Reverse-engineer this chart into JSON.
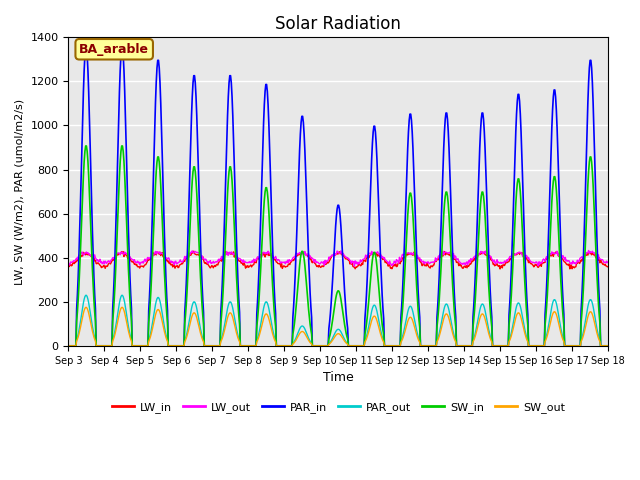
{
  "title": "Solar Radiation",
  "ylabel": "LW, SW (W/m2), PAR (umol/m2/s)",
  "xlabel": "Time",
  "ylim": [
    0,
    1400
  ],
  "yticks": [
    0,
    200,
    400,
    600,
    800,
    1000,
    1200,
    1400
  ],
  "annotation_text": "BA_arable",
  "annotation_color": "#8B0000",
  "annotation_bg": "#FFFF99",
  "bg_color": "#E8E8E8",
  "series_colors": {
    "LW_in": "#FF0000",
    "LW_out": "#FF00FF",
    "PAR_in": "#0000FF",
    "PAR_out": "#00CCCC",
    "SW_in": "#00CC00",
    "SW_out": "#FFA500"
  },
  "xtick_labels": [
    "Sep 3",
    "Sep 4",
    "Sep 5",
    "Sep 6",
    "Sep 7",
    "Sep 8",
    "Sep 9",
    "Sep 10",
    "Sep 11",
    "Sep 12",
    "Sep 13",
    "Sep 14",
    "Sep 15",
    "Sep 16",
    "Sep 17",
    "Sep 18"
  ],
  "n_days": 15,
  "day_peaks_PAR_in": [
    1360,
    1360,
    1300,
    1230,
    1230,
    1190,
    1045,
    640,
    1000,
    1055,
    1060,
    1060,
    1145,
    1165,
    1300
  ],
  "day_peaks_SW_in": [
    910,
    910,
    860,
    815,
    815,
    720,
    430,
    250,
    425,
    695,
    700,
    700,
    760,
    770,
    860
  ],
  "day_peaks_PAR_out": [
    230,
    230,
    220,
    200,
    200,
    200,
    90,
    75,
    185,
    180,
    190,
    190,
    195,
    210,
    210
  ],
  "day_peaks_SW_out": [
    175,
    175,
    165,
    150,
    150,
    145,
    65,
    55,
    135,
    130,
    145,
    145,
    150,
    155,
    155
  ],
  "lw_in_base": 360,
  "lw_out_base": 375,
  "lw_variation": 60,
  "grid_color": "#FFFFFF",
  "grid_alpha": 1.0
}
